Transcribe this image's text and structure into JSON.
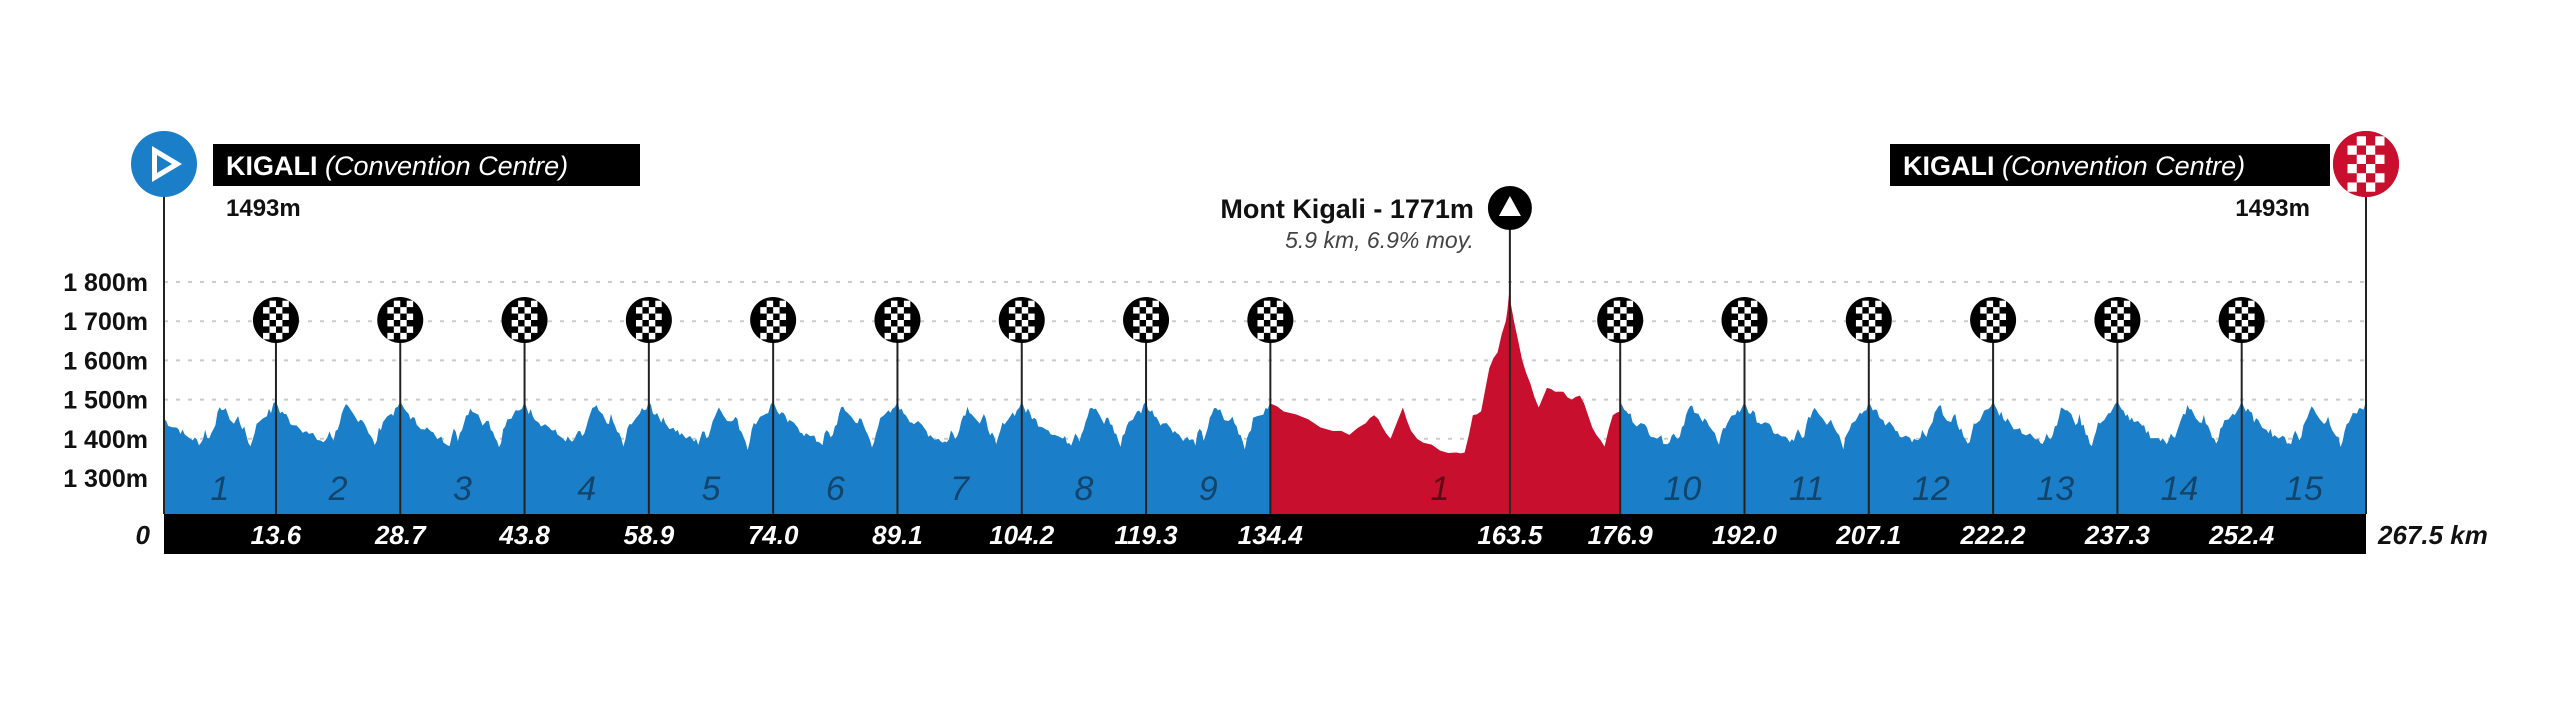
{
  "chart_data": {
    "type": "area",
    "title": "",
    "xlabel": "",
    "ylabel": "",
    "x_unit": "km",
    "xlim": [
      0,
      267.5
    ],
    "ylim": [
      1200,
      1800
    ],
    "grid": true,
    "y_ticks": [
      "1 800m",
      "1 700m",
      "1 600m",
      "1 500m",
      "1 400m",
      "1 300m"
    ],
    "y_tick_values": [
      1800,
      1700,
      1600,
      1500,
      1400,
      1300
    ],
    "x_tick_labels": [
      "0",
      "13.6",
      "28.7",
      "43.8",
      "58.9",
      "74.0",
      "89.1",
      "104.2",
      "119.3",
      "134.4",
      "163.5",
      "176.9",
      "192.0",
      "207.1",
      "222.2",
      "237.3",
      "252.4",
      "267.5 km"
    ],
    "x_tick_values": [
      0,
      13.6,
      28.7,
      43.8,
      58.9,
      74.0,
      89.1,
      104.2,
      119.3,
      134.4,
      163.5,
      176.9,
      192.0,
      207.1,
      222.2,
      237.3,
      252.4,
      267.5
    ],
    "lap_markers_km": [
      13.6,
      28.7,
      43.8,
      58.9,
      74.0,
      89.1,
      104.2,
      119.3,
      134.4,
      176.9,
      192.0,
      207.1,
      222.2,
      237.3,
      252.4
    ],
    "colors": {
      "circuit": "#1a7fc8",
      "climb_loop": "#c8102e",
      "bar": "#000000",
      "start": "#1a7fc8",
      "finish": "#c8102e"
    },
    "series": [
      {
        "segment": "circuit-laps",
        "laps": [
          {
            "label": "1",
            "from": 0,
            "to": 13.6
          },
          {
            "label": "2",
            "from": 13.6,
            "to": 28.7
          },
          {
            "label": "3",
            "from": 28.7,
            "to": 43.8
          },
          {
            "label": "4",
            "from": 43.8,
            "to": 58.9
          },
          {
            "label": "5",
            "from": 58.9,
            "to": 74.0
          },
          {
            "label": "6",
            "from": 74.0,
            "to": 89.1
          },
          {
            "label": "7",
            "from": 89.1,
            "to": 104.2
          },
          {
            "label": "8",
            "from": 104.2,
            "to": 119.3
          },
          {
            "label": "9",
            "from": 119.3,
            "to": 134.4
          },
          {
            "label": "10",
            "from": 176.9,
            "to": 192.0
          },
          {
            "label": "11",
            "from": 192.0,
            "to": 207.1
          },
          {
            "label": "12",
            "from": 207.1,
            "to": 222.2
          },
          {
            "label": "13",
            "from": 222.2,
            "to": 237.3
          },
          {
            "label": "14",
            "from": 237.3,
            "to": 252.4
          },
          {
            "label": "15",
            "from": 252.4,
            "to": 267.5
          }
        ],
        "lap_profile_km": [
          0,
          0.5,
          1,
          1.5,
          2,
          3,
          3.5,
          4,
          5,
          5.5,
          6,
          6.5,
          7,
          7.5,
          8,
          8.5,
          9,
          10,
          10.5,
          11,
          11.5,
          12,
          12.5,
          13,
          14,
          14.5,
          15.1
        ],
        "lap_profile_m": [
          1495,
          1470,
          1465,
          1450,
          1440,
          1430,
          1420,
          1410,
          1400,
          1395,
          1390,
          1420,
          1400,
          1430,
          1460,
          1480,
          1470,
          1440,
          1455,
          1430,
          1410,
          1380,
          1420,
          1445,
          1465,
          1470,
          1495
        ]
      },
      {
        "segment": "mont-kigali-loop",
        "label": "1",
        "from": 134.4,
        "to": 176.9,
        "km": [
          134.4,
          136,
          139,
          142,
          144,
          146,
          147,
          148,
          149,
          150.5,
          151.5,
          153,
          155,
          157,
          158,
          159,
          160,
          161,
          162,
          163,
          163.4,
          164,
          165,
          166,
          167,
          168,
          169,
          170,
          171,
          172,
          173,
          174,
          175,
          176,
          176.9
        ],
        "m": [
          1490,
          1470,
          1450,
          1420,
          1410,
          1440,
          1460,
          1430,
          1400,
          1480,
          1420,
          1390,
          1370,
          1365,
          1365,
          1460,
          1470,
          1580,
          1620,
          1700,
          1771,
          1700,
          1600,
          1540,
          1480,
          1530,
          1520,
          1520,
          1500,
          1510,
          1460,
          1410,
          1380,
          1460,
          1470
        ]
      }
    ]
  },
  "start": {
    "city": "KIGALI",
    "venue": "(Convention Centre)",
    "altitude": "1493m"
  },
  "finish": {
    "city": "KIGALI",
    "venue": "(Convention Centre)",
    "altitude": "1493m"
  },
  "climb": {
    "name": "Mont Kigali - 1771m",
    "details": "5.9 km, 6.9% moy.",
    "km": 163.5
  }
}
